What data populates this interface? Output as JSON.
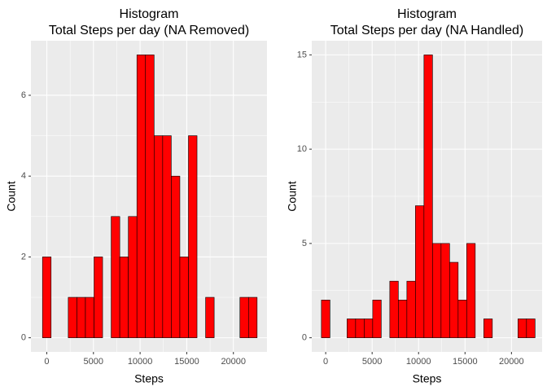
{
  "chart_data": [
    {
      "type": "histogram",
      "title": "Histogram",
      "subtitle": "Total Steps per day (NA Removed)",
      "x_label": "Steps",
      "y_label": "Count",
      "color": "#ff0000",
      "edge_color": "#000000",
      "bins": [
        -460,
        460,
        1380,
        2300,
        3220,
        4140,
        5060,
        5980,
        6900,
        7820,
        8740,
        9660,
        10580,
        11500,
        12420,
        13340,
        14260,
        15180,
        16100,
        17020,
        17940,
        18860,
        19780,
        20700,
        21620,
        22540
      ],
      "values": [
        2,
        0,
        0,
        1,
        1,
        1,
        2,
        0,
        3,
        2,
        3,
        7,
        7,
        5,
        5,
        4,
        2,
        5,
        0,
        1,
        0,
        0,
        0,
        1,
        1
      ],
      "xlim": [
        -1700,
        23600
      ],
      "xticks": [
        0,
        5000,
        10000,
        15000,
        20000
      ],
      "ylim": [
        -0.35,
        7.35
      ],
      "yticks": [
        0,
        2,
        4,
        6
      ],
      "grid": true
    },
    {
      "type": "histogram",
      "title": "Histogram",
      "subtitle": "Total Steps per day (NA Handled)",
      "x_label": "Steps",
      "y_label": "Count",
      "color": "#ff0000",
      "edge_color": "#000000",
      "bins": [
        -460,
        460,
        1380,
        2300,
        3220,
        4140,
        5060,
        5980,
        6900,
        7820,
        8740,
        9660,
        10580,
        11500,
        12420,
        13340,
        14260,
        15180,
        16100,
        17020,
        17940,
        18860,
        19780,
        20700,
        21620,
        22540
      ],
      "values": [
        2,
        0,
        0,
        1,
        1,
        1,
        2,
        0,
        3,
        2,
        3,
        7,
        15,
        5,
        5,
        4,
        2,
        5,
        0,
        1,
        0,
        0,
        0,
        1,
        1
      ],
      "xlim": [
        -1500,
        23300
      ],
      "xticks": [
        0,
        5000,
        10000,
        15000,
        20000
      ],
      "ylim": [
        -0.75,
        15.75
      ],
      "yticks": [
        0,
        5,
        10,
        15
      ],
      "grid": true
    }
  ]
}
